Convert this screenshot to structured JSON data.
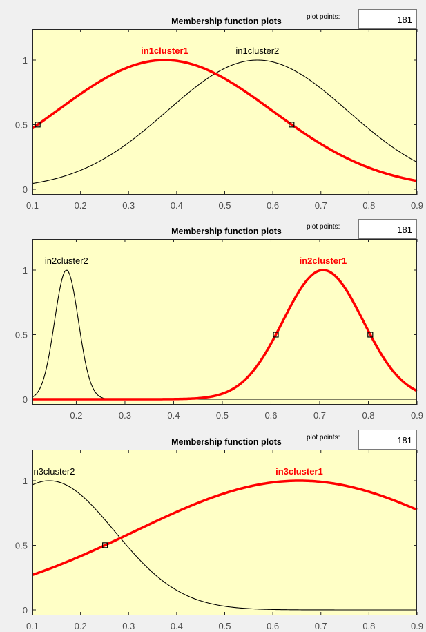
{
  "colors": {
    "background": "#f0f0f0",
    "plot_bg": "#ffffc6",
    "axis": "#262626",
    "tick_label": "#4d4d4d",
    "selected": "#ff0000",
    "unselected": "#000000",
    "input_bg": "#ffffff"
  },
  "chart_data": [
    {
      "type": "line",
      "title": "Membership function plots",
      "plot_points_label": "plot points:",
      "plot_points_value": "181",
      "xlim": [
        0.1,
        0.9
      ],
      "ylim": [
        0,
        1
      ],
      "xticks": [
        "0.1",
        "0.2",
        "0.3",
        "0.4",
        "0.5",
        "0.6",
        "0.7",
        "0.8",
        "0.9"
      ],
      "yticks": [
        "0",
        "0.5",
        "1"
      ],
      "series": [
        {
          "name": "in1cluster1",
          "type": "gaussian",
          "center": 0.375,
          "sigma": 0.2245,
          "selected": true,
          "markers_x": [
            0.111,
            0.639
          ]
        },
        {
          "name": "in1cluster2",
          "type": "gaussian",
          "center": 0.568,
          "sigma": 0.1878,
          "selected": false
        }
      ]
    },
    {
      "type": "line",
      "title": "Membership function plots",
      "plot_points_label": "plot points:",
      "plot_points_value": "181",
      "xlim": [
        0.11,
        0.9
      ],
      "ylim": [
        0,
        1
      ],
      "xticks": [
        "0.2",
        "0.3",
        "0.4",
        "0.5",
        "0.6",
        "0.7",
        "0.8",
        "0.9"
      ],
      "yticks": [
        "0",
        "0.5",
        "1"
      ],
      "series": [
        {
          "name": "in2cluster2",
          "type": "gaussian",
          "center": 0.18,
          "sigma": 0.0245,
          "selected": false
        },
        {
          "name": "in2cluster1",
          "type": "gaussian",
          "center": 0.707,
          "sigma": 0.0824,
          "selected": true,
          "markers_x": [
            0.61,
            0.804
          ]
        }
      ]
    },
    {
      "type": "line",
      "title": "Membership function plots",
      "plot_points_label": "plot points:",
      "plot_points_value": "181",
      "xlim": [
        0.1,
        0.9
      ],
      "ylim": [
        0,
        1
      ],
      "xticks": [
        "0.1",
        "0.2",
        "0.3",
        "0.4",
        "0.5",
        "0.6",
        "0.7",
        "0.8",
        "0.9"
      ],
      "yticks": [
        "0",
        "0.5",
        "1"
      ],
      "series": [
        {
          "name": "in3cluster2",
          "type": "gaussian",
          "center": 0.135,
          "sigma": 0.1365,
          "selected": false
        },
        {
          "name": "in3cluster1",
          "type": "gaussian",
          "center": 0.655,
          "sigma": 0.3435,
          "selected": true,
          "markers_x": [
            0.251
          ]
        }
      ]
    }
  ]
}
